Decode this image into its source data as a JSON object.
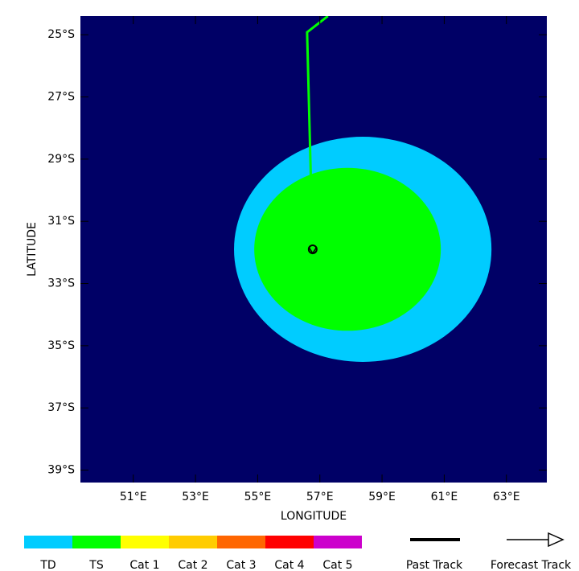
{
  "chart_data": {
    "type": "map",
    "x_label": "LONGITUDE",
    "y_label": "LATITUDE",
    "xlim": [
      49.3,
      64.3
    ],
    "ylim": [
      -24.4,
      -39.4
    ],
    "xticks": [
      {
        "value": 51,
        "label": "51°E"
      },
      {
        "value": 53,
        "label": "53°E"
      },
      {
        "value": 55,
        "label": "55°E"
      },
      {
        "value": 57,
        "label": "57°E"
      },
      {
        "value": 59,
        "label": "59°E"
      },
      {
        "value": 61,
        "label": "61°E"
      },
      {
        "value": 63,
        "label": "63°E"
      }
    ],
    "yticks": [
      {
        "value": -25,
        "label": "25°S"
      },
      {
        "value": -27,
        "label": "27°S"
      },
      {
        "value": -29,
        "label": "29°S"
      },
      {
        "value": -31,
        "label": "31°S"
      },
      {
        "value": -33,
        "label": "33°S"
      },
      {
        "value": -35,
        "label": "35°S"
      },
      {
        "value": -37,
        "label": "37°S"
      },
      {
        "value": -39,
        "label": "39°S"
      }
    ],
    "background": "#000066",
    "wind_areas": [
      {
        "color": "#00ccff",
        "center_lon": 58.38,
        "center_lat": -31.9,
        "radius_lon": 4.14,
        "radius_lat": 3.62
      },
      {
        "color": "#00ff00",
        "center_lon": 57.89,
        "center_lat": -31.9,
        "radius_lon": 3.0,
        "radius_lat": 2.62
      }
    ],
    "track": {
      "color": "#00ff00",
      "lon": [
        57.26,
        56.59,
        56.77
      ],
      "lat": [
        -24.4,
        -24.92,
        -31.9
      ]
    },
    "legend": {
      "categories": [
        {
          "name": "TD",
          "color": "#00ccff"
        },
        {
          "name": "TS",
          "color": "#00ff00"
        },
        {
          "name": "Cat 1",
          "color": "#ffff00"
        },
        {
          "name": "Cat 2",
          "color": "#ffcc00"
        },
        {
          "name": "Cat 3",
          "color": "#ff6600"
        },
        {
          "name": "Cat 4",
          "color": "#ff0000"
        },
        {
          "name": "Cat 5",
          "color": "#cc00cc"
        }
      ],
      "past_track": "Past Track",
      "forecast_track": "Forecast Track"
    }
  }
}
